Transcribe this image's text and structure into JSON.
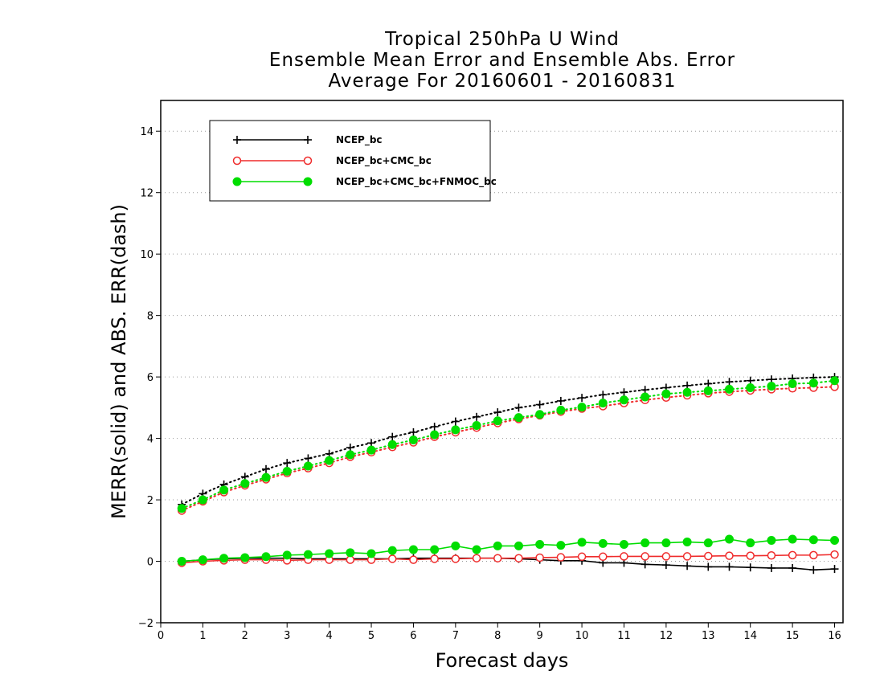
{
  "chart_data": {
    "type": "line",
    "title": "Tropical 250hPa U Wind",
    "subtitle_lines": [
      "Ensemble Mean Error and Ensemble Abs. Error",
      "Average For 20160601 - 20160831"
    ],
    "xlabel": "Forecast days",
    "ylabel": "MERR(solid) and ABS. ERR(dash)",
    "xlim": [
      0,
      16.2
    ],
    "ylim": [
      -2,
      15
    ],
    "xticks": [
      0,
      1,
      2,
      3,
      4,
      5,
      6,
      7,
      8,
      9,
      10,
      11,
      12,
      13,
      14,
      15,
      16
    ],
    "yticks": [
      -2,
      0,
      2,
      4,
      6,
      8,
      10,
      12,
      14
    ],
    "grid": "horizontal dotted",
    "legend_position": "top-left",
    "x": [
      0.5,
      1,
      1.5,
      2,
      2.5,
      3,
      3.5,
      4,
      4.5,
      5,
      5.5,
      6,
      6.5,
      7,
      7.5,
      8,
      8.5,
      9,
      9.5,
      10,
      10.5,
      11,
      11.5,
      12,
      12.5,
      13,
      13.5,
      14,
      14.5,
      15,
      15.5,
      16
    ],
    "series": [
      {
        "name": "NCEP_bc",
        "color": "#000000",
        "marker": "plus",
        "merr": [
          0.0,
          0.05,
          0.08,
          0.1,
          0.1,
          0.1,
          0.08,
          0.08,
          0.08,
          0.08,
          0.08,
          0.1,
          0.1,
          0.1,
          0.1,
          0.1,
          0.08,
          0.05,
          0.02,
          0.02,
          -0.05,
          -0.05,
          -0.1,
          -0.12,
          -0.15,
          -0.18,
          -0.18,
          -0.2,
          -0.22,
          -0.22,
          -0.28,
          -0.25
        ],
        "abs_err": [
          1.85,
          2.2,
          2.5,
          2.75,
          3.0,
          3.2,
          3.35,
          3.5,
          3.7,
          3.85,
          4.05,
          4.2,
          4.38,
          4.55,
          4.7,
          4.85,
          5.0,
          5.1,
          5.22,
          5.32,
          5.42,
          5.5,
          5.58,
          5.65,
          5.72,
          5.78,
          5.84,
          5.88,
          5.92,
          5.95,
          5.98,
          6.0
        ]
      },
      {
        "name": "NCEP_bc+CMC_bc",
        "color": "#ef2b2b",
        "marker": "open-circle",
        "merr": [
          -0.05,
          0.0,
          0.03,
          0.05,
          0.05,
          0.03,
          0.05,
          0.05,
          0.05,
          0.05,
          0.08,
          0.05,
          0.08,
          0.08,
          0.1,
          0.1,
          0.1,
          0.12,
          0.13,
          0.15,
          0.15,
          0.16,
          0.16,
          0.16,
          0.16,
          0.17,
          0.18,
          0.18,
          0.19,
          0.2,
          0.2,
          0.22
        ],
        "abs_err": [
          1.65,
          1.95,
          2.25,
          2.47,
          2.67,
          2.87,
          3.03,
          3.2,
          3.4,
          3.55,
          3.72,
          3.87,
          4.05,
          4.2,
          4.35,
          4.5,
          4.63,
          4.75,
          4.87,
          4.97,
          5.05,
          5.15,
          5.25,
          5.33,
          5.4,
          5.47,
          5.52,
          5.56,
          5.6,
          5.63,
          5.65,
          5.68
        ]
      },
      {
        "name": "NCEP_bc+CMC_bc+FNMOC_bc",
        "color": "#00dd00",
        "marker": "filled-circle",
        "merr": [
          0.0,
          0.05,
          0.1,
          0.12,
          0.15,
          0.2,
          0.22,
          0.25,
          0.28,
          0.25,
          0.35,
          0.38,
          0.38,
          0.5,
          0.38,
          0.5,
          0.5,
          0.55,
          0.52,
          0.62,
          0.58,
          0.55,
          0.6,
          0.6,
          0.63,
          0.6,
          0.72,
          0.6,
          0.68,
          0.72,
          0.7,
          0.68
        ],
        "abs_err": [
          1.72,
          2.0,
          2.32,
          2.53,
          2.73,
          2.93,
          3.1,
          3.28,
          3.47,
          3.62,
          3.8,
          3.95,
          4.12,
          4.28,
          4.42,
          4.57,
          4.68,
          4.78,
          4.92,
          5.02,
          5.15,
          5.25,
          5.35,
          5.45,
          5.5,
          5.55,
          5.6,
          5.65,
          5.7,
          5.78,
          5.8,
          5.88
        ]
      }
    ]
  }
}
